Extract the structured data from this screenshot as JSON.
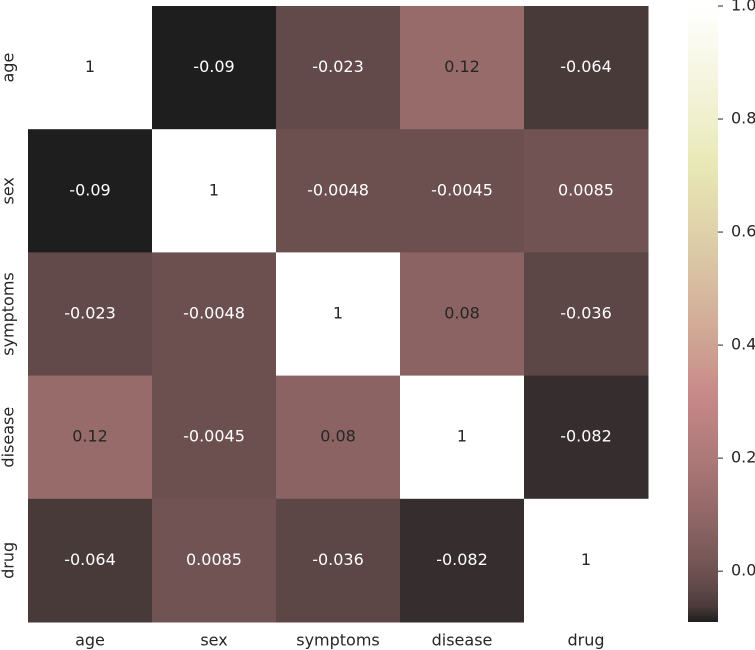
{
  "chart_data": {
    "type": "heatmap",
    "x_categories": [
      "age",
      "sex",
      "symptoms",
      "disease",
      "drug"
    ],
    "y_categories": [
      "age",
      "sex",
      "symptoms",
      "disease",
      "drug"
    ],
    "values": [
      [
        1,
        -0.09,
        -0.023,
        0.12,
        -0.064
      ],
      [
        -0.09,
        1,
        -0.0048,
        -0.0045,
        0.0085
      ],
      [
        -0.023,
        -0.0048,
        1,
        0.08,
        -0.036
      ],
      [
        0.12,
        -0.0045,
        0.08,
        1,
        -0.082
      ],
      [
        -0.064,
        0.0085,
        -0.036,
        -0.082,
        1
      ]
    ],
    "colormap": "pink",
    "clim": [
      -0.09,
      1
    ],
    "colorbar_ticks": [
      {
        "value": 0,
        "label": "0.0"
      },
      {
        "value": 0.2,
        "label": "0.2"
      },
      {
        "value": 0.4,
        "label": "0.4"
      },
      {
        "value": 0.6,
        "label": "0.6"
      },
      {
        "value": 0.8,
        "label": "0.8"
      },
      {
        "value": 1,
        "label": "1.0"
      }
    ]
  }
}
